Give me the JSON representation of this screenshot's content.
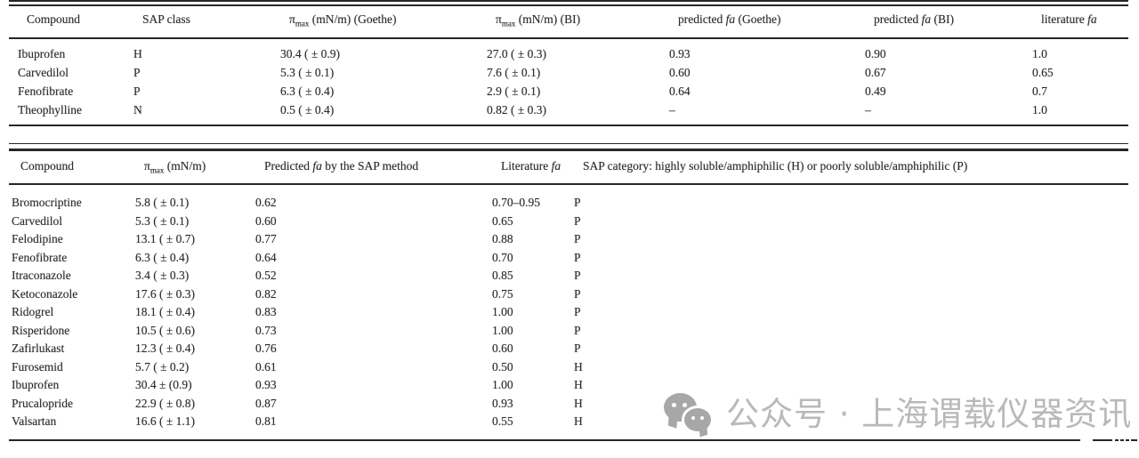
{
  "page": {
    "background": "#ffffff",
    "ink_color": "#2e2e2e",
    "rule_color": "#262626",
    "watermark_color": "#b9b9b9"
  },
  "table1": {
    "headers": {
      "compound": "Compound",
      "sap_class": "SAP class",
      "pi_goethe": {
        "pi": "π",
        "sub": "max",
        "rest": " (mN/m) (Goethe)"
      },
      "pi_bi": {
        "pi": "π",
        "sub": "max",
        "rest": " (mN/m) (BI)"
      },
      "pred_goethe": {
        "pre": "predicted ",
        "it": "fa",
        "post": " (Goethe)"
      },
      "pred_bi": {
        "pre": "predicted ",
        "it": "fa",
        "post": " (BI)"
      },
      "lit": {
        "pre": "literature ",
        "it": "fa",
        "post": ""
      }
    },
    "rows": [
      [
        "Ibuprofen",
        "H",
        "30.4 ( ± 0.9)",
        "27.0 ( ± 0.3)",
        "0.93",
        "0.90",
        "1.0"
      ],
      [
        "Carvedilol",
        "P",
        "5.3 ( ± 0.1)",
        "7.6 ( ± 0.1)",
        "0.60",
        "0.67",
        "0.65"
      ],
      [
        "Fenofibrate",
        "P",
        "6.3 ( ± 0.4)",
        "2.9 ( ± 0.1)",
        "0.64",
        "0.49",
        "0.7"
      ],
      [
        "Theophylline",
        "N",
        "0.5 ( ± 0.4)",
        "0.82 ( ± 0.3)",
        "–",
        "–",
        "1.0"
      ]
    ]
  },
  "table2": {
    "headers": {
      "compound": "Compound",
      "pi": {
        "pi": "π",
        "sub": "max",
        "rest": " (mN/m)"
      },
      "pred": {
        "pre": "Predicted ",
        "it": "fa",
        "post": " by the SAP method"
      },
      "lit": {
        "pre": "Literature ",
        "it": "fa",
        "post": ""
      },
      "sap": "SAP category: highly soluble/amphiphilic (H) or poorly soluble/amphiphilic (P)"
    },
    "rows": [
      [
        "Bromocriptine",
        "5.8 ( ± 0.1)",
        "0.62",
        "0.70–0.95",
        "P"
      ],
      [
        "Carvedilol",
        "5.3 ( ± 0.1)",
        "0.60",
        "0.65",
        "P"
      ],
      [
        "Felodipine",
        "13.1 ( ± 0.7)",
        "0.77",
        "0.88",
        "P"
      ],
      [
        "Fenofibrate",
        "6.3 ( ± 0.4)",
        "0.64",
        "0.70",
        "P"
      ],
      [
        "Itraconazole",
        "3.4 ( ± 0.3)",
        "0.52",
        "0.85",
        "P"
      ],
      [
        "Ketoconazole",
        "17.6 ( ± 0.3)",
        "0.82",
        "0.75",
        "P"
      ],
      [
        "Ridogrel",
        "18.1 ( ± 0.4)",
        "0.83",
        "1.00",
        "P"
      ],
      [
        "Risperidone",
        "10.5 ( ± 0.6)",
        "0.73",
        "1.00",
        "P"
      ],
      [
        "Zafirlukast",
        "12.3 ( ± 0.4)",
        "0.76",
        "0.60",
        "P"
      ],
      [
        "Furosemid",
        "5.7 ( ± 0.2)",
        "0.61",
        "0.50",
        "H"
      ],
      [
        "Ibuprofen",
        "30.4 ± (0.9)",
        "0.93",
        "1.00",
        "H"
      ],
      [
        "Prucalopride",
        "22.9 ( ± 0.8)",
        "0.87",
        "0.93",
        "H"
      ],
      [
        "Valsartan",
        "16.6 ( ± 1.1)",
        "0.81",
        "0.55",
        "H"
      ]
    ]
  },
  "watermark": {
    "icon": "wechat-icon",
    "text": "公众号 · 上海谓载仪器资讯"
  }
}
